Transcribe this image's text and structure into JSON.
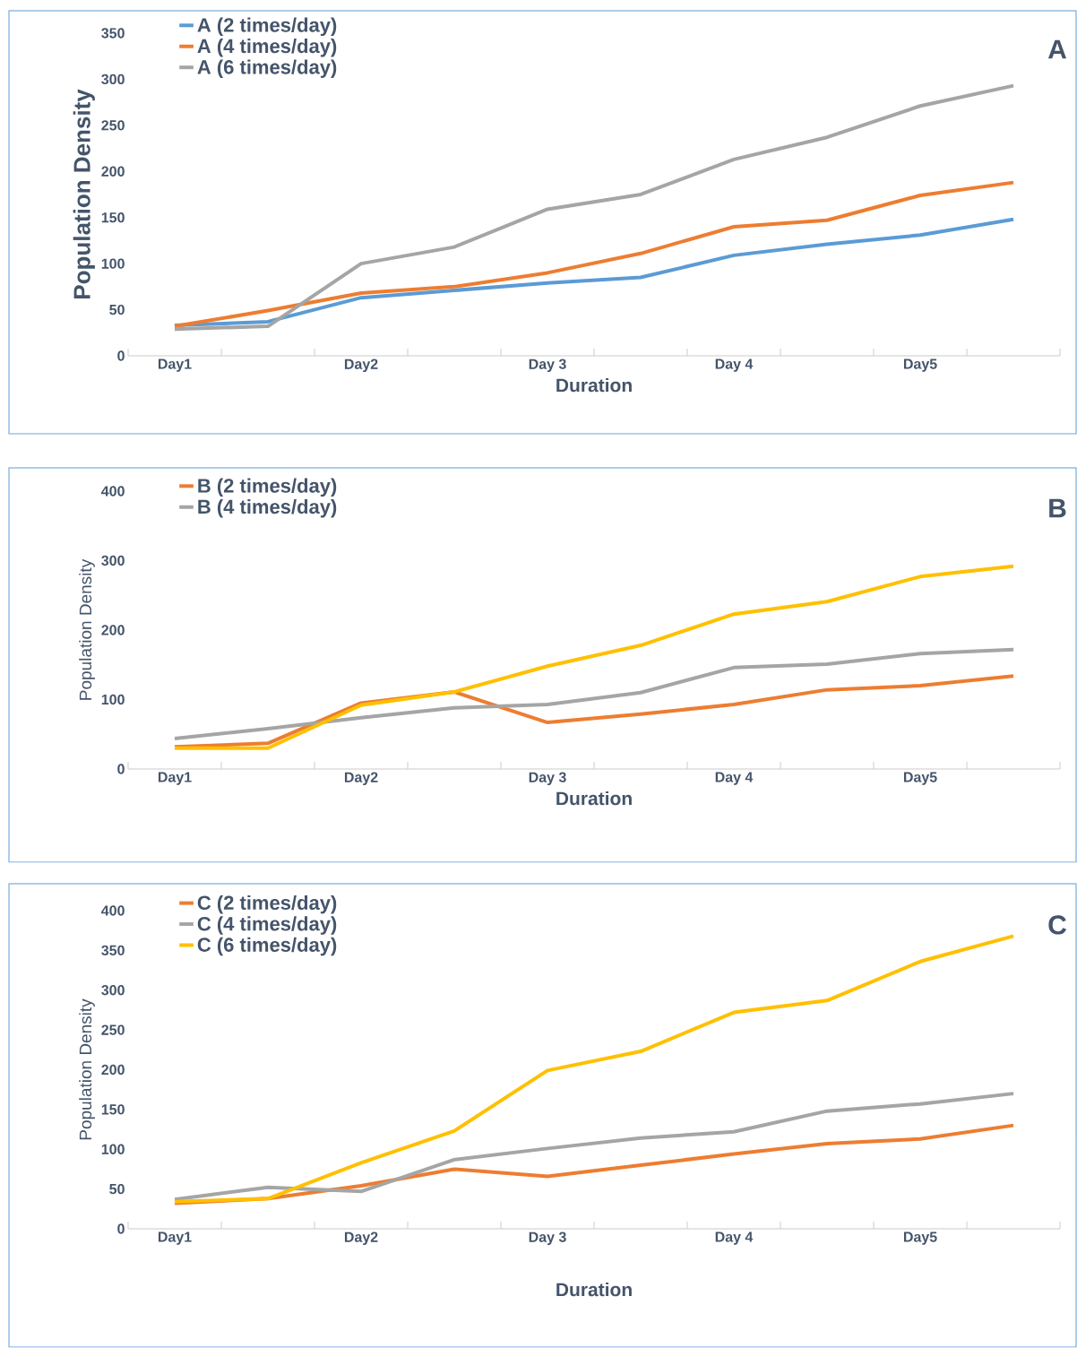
{
  "chart_data": [
    {
      "type": "line",
      "xlabel": "Duration",
      "ylabel": "Population Density",
      "categories": [
        "Day1",
        null,
        "Day2",
        null,
        "Day 3",
        null,
        "Day 4",
        null,
        "Day5",
        null
      ],
      "ylim": [
        0,
        350
      ],
      "yticks": [
        0,
        50,
        100,
        150,
        200,
        250,
        300,
        350
      ],
      "legend": "top left",
      "annotations": [
        "A"
      ],
      "series": [
        {
          "name": "A (2 times/day)",
          "color": "#5b9bd5",
          "values": [
            33,
            37,
            63,
            71,
            79,
            85,
            109,
            121,
            131,
            148
          ]
        },
        {
          "name": "A (4 times/day)",
          "color": "#ed7d31",
          "values": [
            32,
            49,
            68,
            75,
            90,
            111,
            140,
            147,
            174,
            188
          ]
        },
        {
          "name": "A (6 times/day)",
          "color": "#a5a5a5",
          "values": [
            29,
            32,
            100,
            118,
            159,
            175,
            213,
            237,
            271,
            293
          ]
        }
      ]
    },
    {
      "type": "line",
      "xlabel": "Duration",
      "ylabel": "Population Density",
      "categories": [
        "Day1",
        null,
        "Day2",
        null,
        "Day 3",
        null,
        "Day 4",
        null,
        "Day5",
        null
      ],
      "ylim": [
        0,
        400
      ],
      "yticks": [
        0,
        100,
        200,
        300,
        400
      ],
      "legend": "top left",
      "annotations": [
        "B"
      ],
      "series": [
        {
          "name": "B (2 times/day)",
          "color": "#ed7d31",
          "values": [
            32,
            37,
            95,
            111,
            67,
            79,
            93,
            114,
            120,
            134
          ]
        },
        {
          "name": "B (4 times/day)",
          "color": "#a5a5a5",
          "values": [
            44,
            58,
            74,
            88,
            93,
            110,
            146,
            151,
            166,
            172
          ]
        },
        {
          "color": "#ffc000",
          "values": [
            30,
            30,
            92,
            111,
            148,
            178,
            223,
            241,
            277,
            292
          ]
        }
      ]
    },
    {
      "type": "line",
      "xlabel": "Duration",
      "ylabel": "Population Density",
      "categories": [
        "Day1",
        null,
        "Day2",
        null,
        "Day 3",
        null,
        "Day 4",
        null,
        "Day5",
        null
      ],
      "ylim": [
        0,
        400
      ],
      "yticks": [
        0,
        50,
        100,
        150,
        200,
        250,
        300,
        350,
        400
      ],
      "legend": "top left",
      "annotations": [
        "C"
      ],
      "series": [
        {
          "name": "C (2 times/day)",
          "color": "#ed7d31",
          "values": [
            32,
            38,
            54,
            75,
            66,
            80,
            94,
            107,
            113,
            130
          ]
        },
        {
          "name": "C (4 times/day)",
          "color": "#a5a5a5",
          "values": [
            37,
            52,
            47,
            87,
            101,
            114,
            122,
            148,
            157,
            170
          ]
        },
        {
          "name": "C (6 times/day)",
          "color": "#ffc000",
          "values": [
            34,
            38,
            83,
            123,
            199,
            223,
            272,
            287,
            336,
            368
          ]
        }
      ]
    }
  ]
}
